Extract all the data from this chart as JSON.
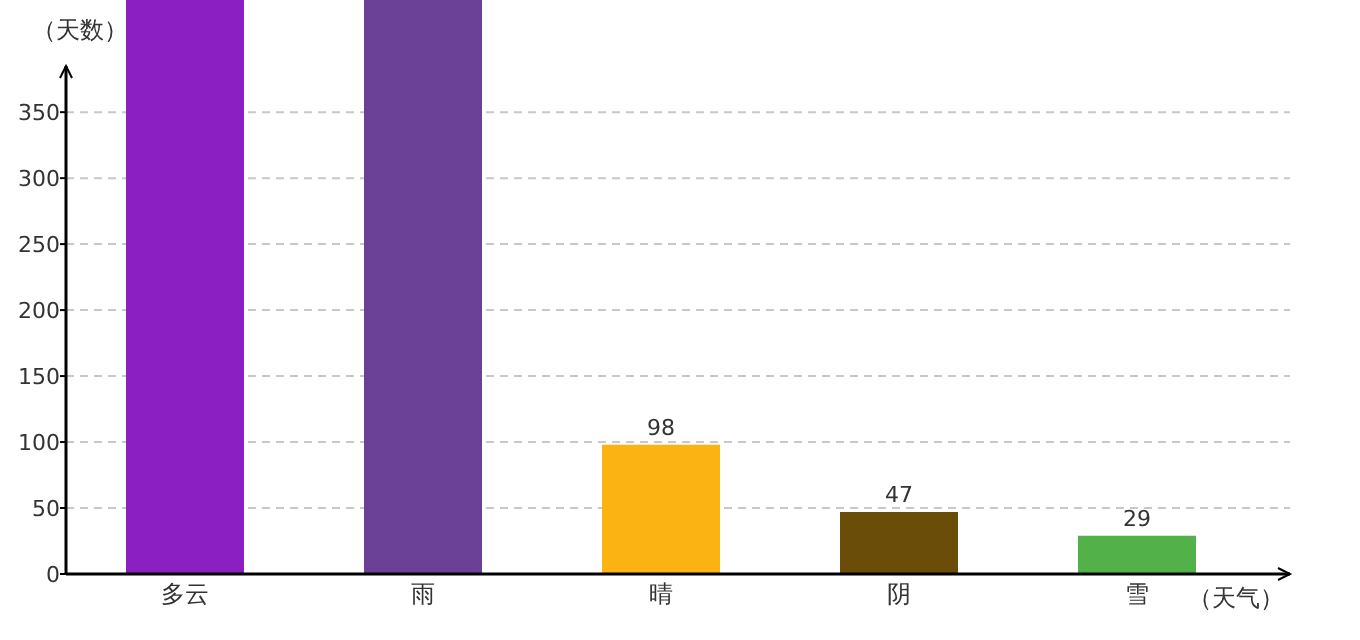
{
  "chart_data": {
    "type": "bar",
    "xlabel": "（天气）",
    "ylabel": "（天数）",
    "categories": [
      "多云",
      "雨",
      "晴",
      "阴",
      "雪"
    ],
    "values": [
      435,
      435,
      98,
      47,
      29
    ],
    "colors": [
      "#8b1fc2",
      "#6a4196",
      "#fbb314",
      "#6a4d09",
      "#53b14a"
    ],
    "value_labels": [
      null,
      null,
      "98",
      "47",
      "29"
    ],
    "ylim": [
      0,
      435
    ],
    "yticks": [
      0,
      50,
      100,
      150,
      200,
      250,
      300,
      350
    ],
    "grid": "y"
  }
}
